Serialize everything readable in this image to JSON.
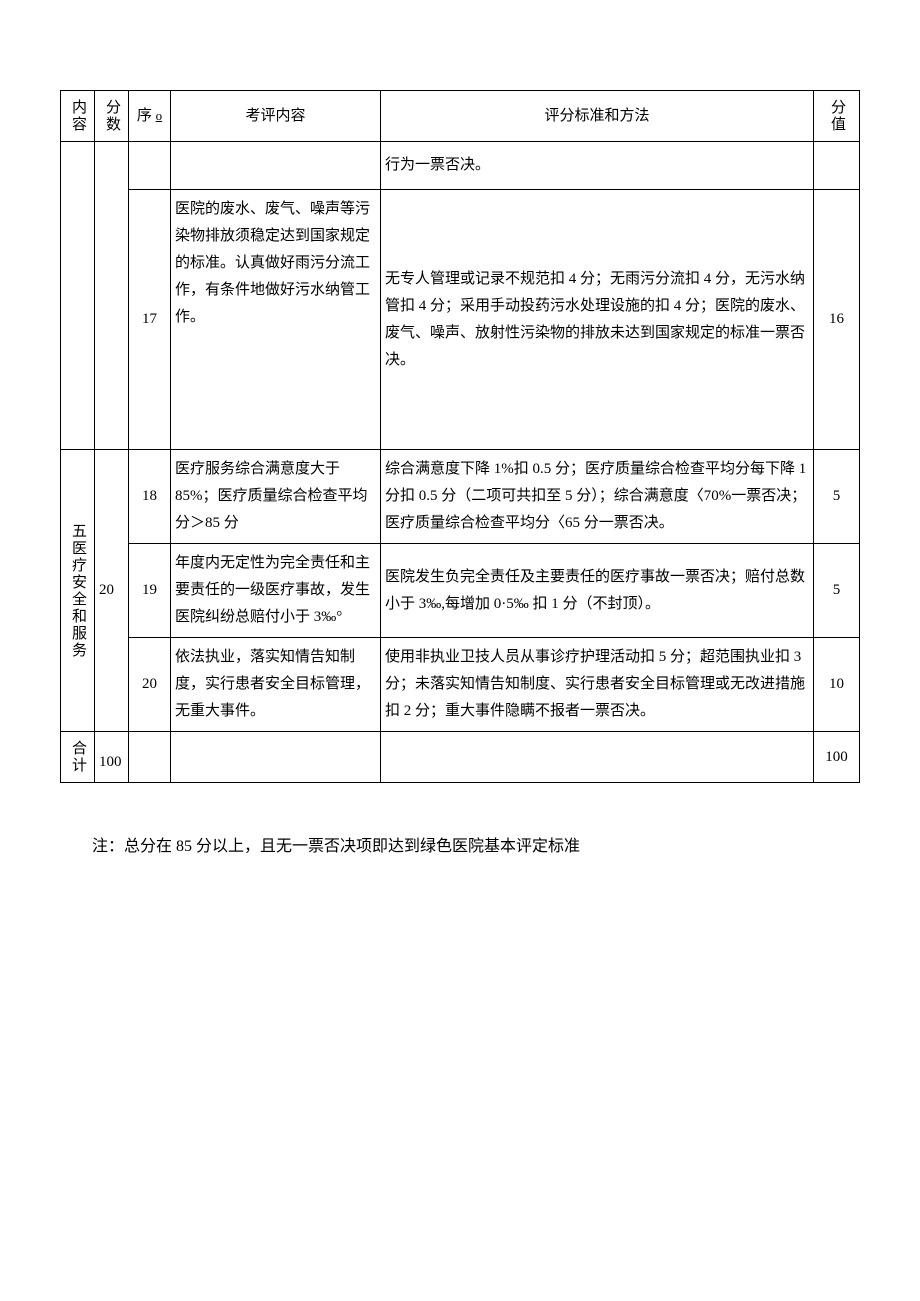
{
  "header": {
    "col_content": "内容",
    "col_score": "分数",
    "col_seq": "序",
    "col_seq_sub": "o",
    "col_eval": "考评内容",
    "col_method": "评分标准和方法",
    "col_val": "分值"
  },
  "rows": {
    "carry": {
      "method": "行为一票否决。"
    },
    "r17": {
      "seq": "17",
      "eval": "医院的废水、废气、噪声等污染物排放须稳定达到国家规定的标准。认真做好雨污分流工作，有条件地做好污水纳管工作。",
      "method": "无专人管理或记录不规范扣 4 分；无雨污分流扣 4 分，无污水纳管扣 4 分；采用手动投药污水处理设施的扣 4 分；医院的废水、废气、噪声、放射性污染物的排放未达到国家规定的标准一票否决。",
      "val": "16"
    },
    "group5": {
      "label": "五医疗安全和服务",
      "score": "20"
    },
    "r18": {
      "seq": "18",
      "eval": "医疗服务综合满意度大于 85%；医疗质量综合检查平均分＞85 分",
      "method": "综合满意度下降 1%扣 0.5 分；医疗质量综合检查平均分每下降 1 分扣 0.5 分（二项可共扣至 5 分）；综合满意度〈70%一票否决；医疗质量综合检查平均分〈65 分一票否决。",
      "val": "5"
    },
    "r19": {
      "seq": "19",
      "eval": "年度内无定性为完全责任和主要责任的一级医疗事故，发生医院纠纷总赔付小于 3‰°",
      "method": "医院发生负完全责任及主要责任的医疗事故一票否决；赔付总数小于 3‰,每增加 0·5‰ 扣 1 分（不封顶）。",
      "val": "5"
    },
    "r20": {
      "seq": "20",
      "eval": "依法执业，落实知情告知制度，实行患者安全目标管理，无重大事件。",
      "method": "使用非执业卫技人员从事诊疗护理活动扣 5 分；超范围执业扣 3 分；未落实知情告知制度、实行患者安全目标管理或无改进措施扣 2 分；重大事件隐瞒不报者一票否决。",
      "val": "10"
    },
    "total": {
      "label": "合计",
      "score": "100",
      "val": "100"
    }
  },
  "note": "注：总分在 85 分以上，且无一票否决项即达到绿色医院基本评定标准"
}
